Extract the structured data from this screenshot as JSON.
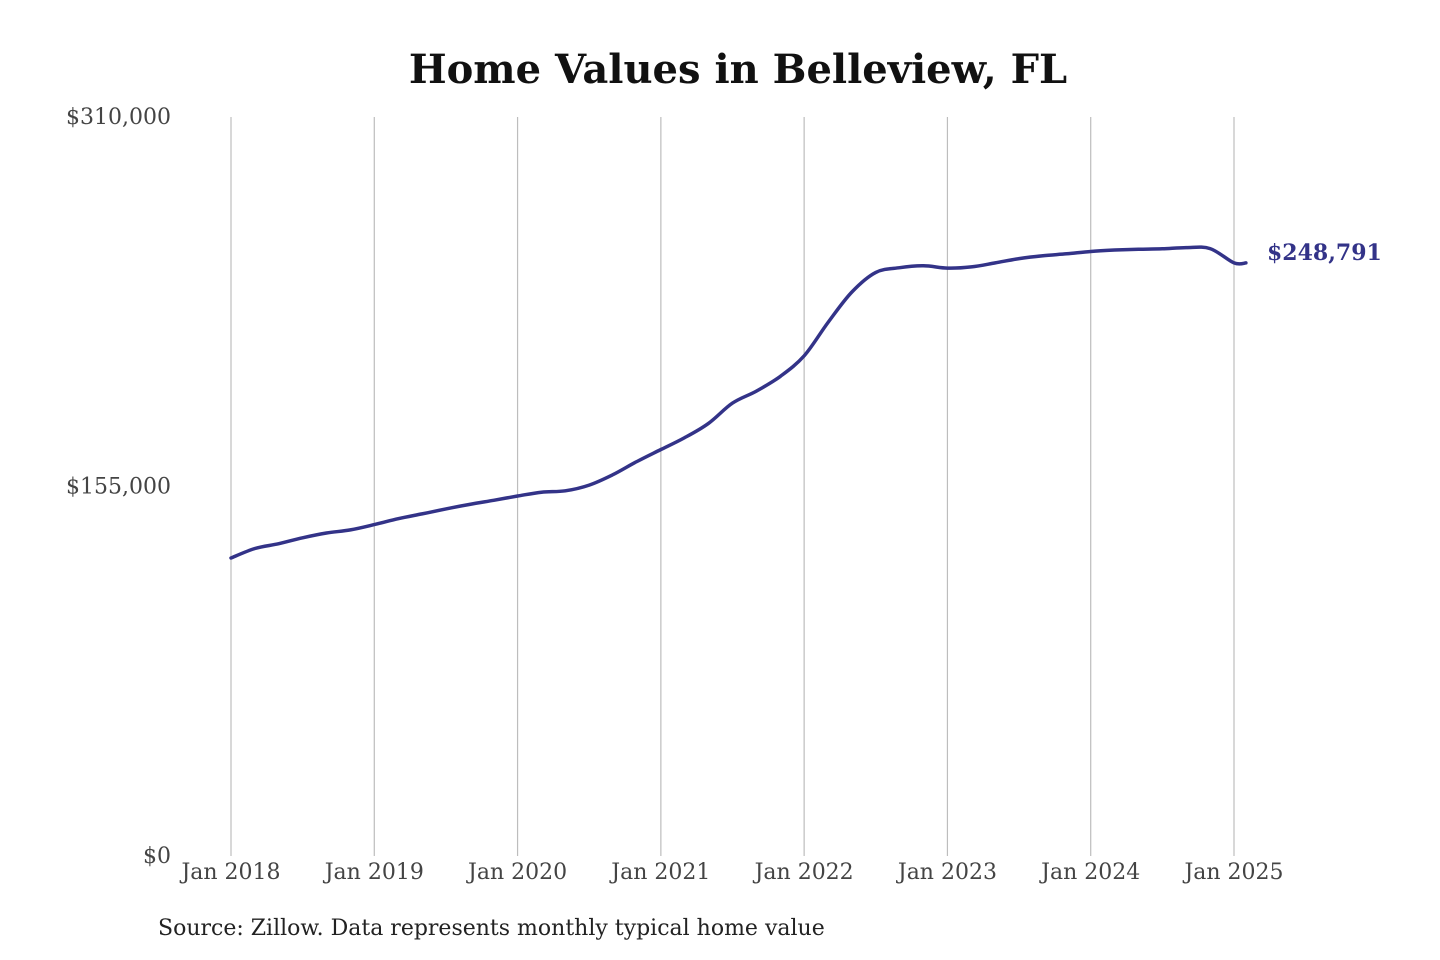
{
  "source_note": "Source: Zillow. Data represents monthly typical home value",
  "colors": {
    "line": "#333388",
    "grid": "#bdbdbd",
    "title": "#111111",
    "tick": "#444444"
  },
  "chart_data": {
    "type": "line",
    "title": "Home Values in Belleview, FL",
    "xlabel": "",
    "ylabel": "",
    "grid": "vertical",
    "legend": "none",
    "ylim": [
      0,
      310000
    ],
    "y_ticks": [
      0,
      155000,
      310000
    ],
    "y_tick_labels": [
      "$0",
      "$155,000",
      "$310,000"
    ],
    "x_tick_labels": [
      "Jan 2018",
      "Jan 2019",
      "Jan 2020",
      "Jan 2021",
      "Jan 2022",
      "Jan 2023",
      "Jan 2024",
      "Jan 2025"
    ],
    "end_label": "$248,791",
    "series": [
      {
        "name": "",
        "x": [
          "2018-01",
          "2018-03",
          "2018-05",
          "2018-07",
          "2018-09",
          "2018-11",
          "2019-01",
          "2019-03",
          "2019-05",
          "2019-07",
          "2019-09",
          "2019-11",
          "2020-01",
          "2020-03",
          "2020-05",
          "2020-07",
          "2020-09",
          "2020-11",
          "2021-01",
          "2021-03",
          "2021-05",
          "2021-07",
          "2021-09",
          "2021-11",
          "2022-01",
          "2022-03",
          "2022-05",
          "2022-07",
          "2022-09",
          "2022-11",
          "2023-01",
          "2023-03",
          "2023-05",
          "2023-07",
          "2023-09",
          "2023-11",
          "2024-01",
          "2024-03",
          "2024-05",
          "2024-07",
          "2024-09",
          "2024-11",
          "2025-01",
          "2025-02"
        ],
        "values": [
          125000,
          129000,
          131000,
          133500,
          135500,
          136800,
          139000,
          141500,
          143500,
          145600,
          147500,
          149200,
          151000,
          152600,
          153200,
          155600,
          160000,
          165500,
          170500,
          175500,
          181500,
          190000,
          195000,
          201200,
          209800,
          223800,
          236600,
          244800,
          246800,
          247600,
          246600,
          247100,
          248800,
          250600,
          251800,
          252600,
          253600,
          254200,
          254500,
          254700,
          255200,
          254800,
          248791,
          248791
        ]
      }
    ]
  }
}
